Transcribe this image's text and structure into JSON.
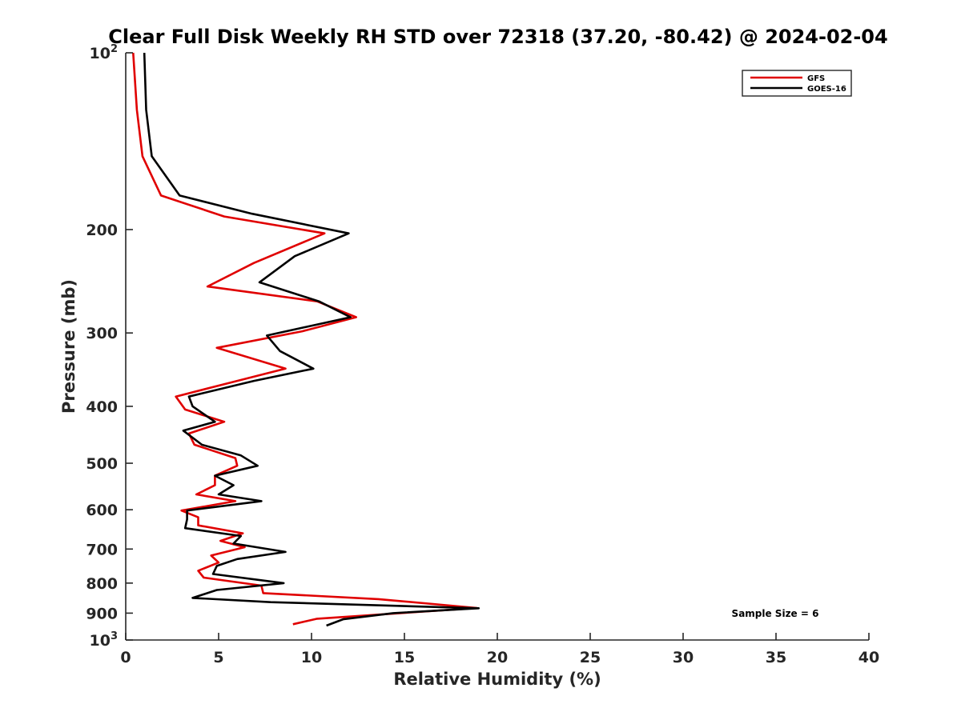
{
  "chart_data": {
    "type": "line",
    "title": "Clear Full Disk Weekly RH STD over 72318 (37.20, -80.42) @ 2024-02-04",
    "xlabel": "Relative Humidity (%)",
    "ylabel": "Pressure (mb)",
    "xlim": [
      0,
      40
    ],
    "ylim": [
      100,
      1000
    ],
    "yscale": "log",
    "y_reversed": true,
    "grid": false,
    "legend_position": "top-right",
    "x_ticks": [
      "0",
      "5",
      "10",
      "15",
      "20",
      "25",
      "30",
      "35",
      "40"
    ],
    "x_tick_values": [
      0,
      5,
      10,
      15,
      20,
      25,
      30,
      35,
      40
    ],
    "y_ticks": [
      {
        "value": 100,
        "base": "10",
        "exp": "2",
        "text": ""
      },
      {
        "value": 200,
        "base": "",
        "exp": "",
        "text": "200"
      },
      {
        "value": 300,
        "base": "",
        "exp": "",
        "text": "300"
      },
      {
        "value": 400,
        "base": "",
        "exp": "",
        "text": "400"
      },
      {
        "value": 500,
        "base": "",
        "exp": "",
        "text": "500"
      },
      {
        "value": 600,
        "base": "",
        "exp": "",
        "text": "600"
      },
      {
        "value": 700,
        "base": "",
        "exp": "",
        "text": "700"
      },
      {
        "value": 800,
        "base": "",
        "exp": "",
        "text": "800"
      },
      {
        "value": 900,
        "base": "",
        "exp": "",
        "text": "900"
      },
      {
        "value": 1000,
        "base": "10",
        "exp": "3",
        "text": ""
      }
    ],
    "annotation": "Sample Size = 6",
    "series": [
      {
        "name": "GFS",
        "color": "#e00000",
        "points": [
          [
            0.4,
            100
          ],
          [
            0.6,
            125
          ],
          [
            0.9,
            150
          ],
          [
            1.9,
            175
          ],
          [
            5.3,
            190
          ],
          [
            10.7,
            203
          ],
          [
            6.9,
            228
          ],
          [
            4.4,
            250
          ],
          [
            10.3,
            265
          ],
          [
            12.4,
            282
          ],
          [
            9.5,
            298
          ],
          [
            4.9,
            318
          ],
          [
            8.6,
            345
          ],
          [
            6.0,
            362
          ],
          [
            2.7,
            385
          ],
          [
            3.2,
            405
          ],
          [
            5.3,
            425
          ],
          [
            3.4,
            445
          ],
          [
            3.7,
            465
          ],
          [
            5.9,
            490
          ],
          [
            6.0,
            505
          ],
          [
            4.8,
            525
          ],
          [
            4.8,
            545
          ],
          [
            3.8,
            565
          ],
          [
            5.9,
            580
          ],
          [
            3.0,
            602
          ],
          [
            3.9,
            618
          ],
          [
            3.9,
            638
          ],
          [
            6.3,
            658
          ],
          [
            5.1,
            678
          ],
          [
            6.4,
            695
          ],
          [
            4.6,
            718
          ],
          [
            5.0,
            738
          ],
          [
            3.9,
            762
          ],
          [
            4.2,
            783
          ],
          [
            7.3,
            808
          ],
          [
            7.4,
            832
          ],
          [
            13.6,
            852
          ],
          [
            18.9,
            882
          ],
          [
            10.3,
            920
          ],
          [
            9.0,
            940
          ]
        ]
      },
      {
        "name": "GOES-16",
        "color": "#000000",
        "points": [
          [
            1.0,
            100
          ],
          [
            1.1,
            125
          ],
          [
            1.4,
            150
          ],
          [
            2.9,
            175
          ],
          [
            6.8,
            188
          ],
          [
            12.0,
            203
          ],
          [
            9.1,
            222
          ],
          [
            7.2,
            246
          ],
          [
            10.4,
            265
          ],
          [
            12.1,
            282
          ],
          [
            7.6,
            303
          ],
          [
            8.3,
            322
          ],
          [
            10.1,
            345
          ],
          [
            6.9,
            362
          ],
          [
            3.4,
            385
          ],
          [
            3.6,
            400
          ],
          [
            4.8,
            425
          ],
          [
            3.1,
            440
          ],
          [
            4.1,
            465
          ],
          [
            6.2,
            485
          ],
          [
            7.1,
            505
          ],
          [
            4.8,
            525
          ],
          [
            5.8,
            545
          ],
          [
            5.0,
            565
          ],
          [
            7.3,
            580
          ],
          [
            3.3,
            602
          ],
          [
            3.3,
            623
          ],
          [
            3.2,
            645
          ],
          [
            6.2,
            665
          ],
          [
            5.8,
            685
          ],
          [
            8.6,
            708
          ],
          [
            6.0,
            728
          ],
          [
            4.9,
            748
          ],
          [
            4.7,
            772
          ],
          [
            8.5,
            800
          ],
          [
            4.9,
            822
          ],
          [
            3.6,
            848
          ],
          [
            7.8,
            862
          ],
          [
            19.0,
            883
          ],
          [
            14.4,
            900
          ],
          [
            11.7,
            922
          ],
          [
            10.8,
            945
          ]
        ]
      }
    ]
  }
}
